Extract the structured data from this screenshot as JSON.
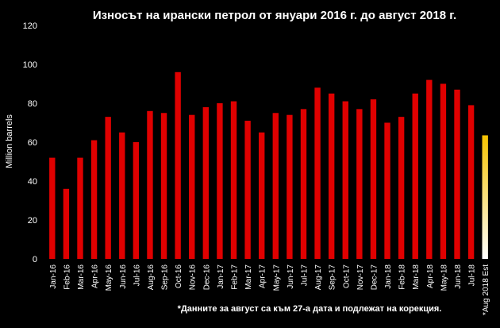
{
  "chart_data": {
    "type": "bar",
    "title": "Износът на ирански петрол от януари 2016 г. до август 2018 г.",
    "ylabel": "Million barrels",
    "xlabel": "",
    "ylim": [
      0,
      120
    ],
    "yticks": [
      "0",
      "20",
      "40",
      "60",
      "80",
      "100",
      "120"
    ],
    "grid": false,
    "legend": "none",
    "categories": [
      "Jan-16",
      "Feb-16",
      "Mar-16",
      "Apr-16",
      "May-16",
      "Jun-16",
      "Jul-16",
      "Aug-16",
      "Sep-16",
      "Oct-16",
      "Nov-16",
      "Dec-16",
      "Jan-17",
      "Feb-17",
      "Mar-17",
      "Apr-17",
      "May-17",
      "Jun-17",
      "Jul-17",
      "Aug-17",
      "Sep-17",
      "Oct-17",
      "Nov-17",
      "Dec-17",
      "Jan-18",
      "Feb-18",
      "Mar-18",
      "Apr-18",
      "May-18",
      "Jun-18",
      "Jul-18",
      "*Aug 2018 Est"
    ],
    "values": [
      52,
      36,
      52,
      61,
      73,
      65,
      60,
      76,
      75,
      96,
      74,
      78,
      80,
      81,
      71,
      65,
      75,
      74,
      77,
      88,
      85,
      81,
      77,
      82,
      70,
      73,
      85,
      92,
      90,
      87,
      79,
      63.5
    ],
    "bar_color": "#e00000",
    "estimate_gradient": [
      "#f5c300",
      "#ffffff"
    ],
    "footnote": "*Данните за август са към 27-а дата и подлежат на корекция."
  }
}
